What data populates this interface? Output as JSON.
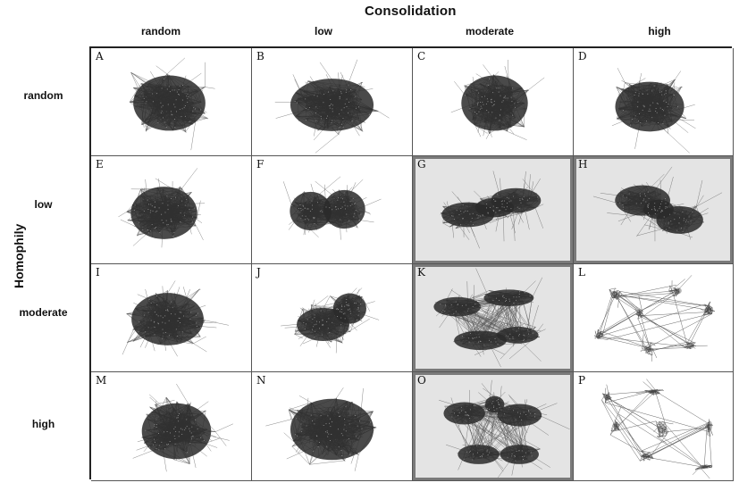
{
  "title": "Consolidation",
  "side_title": "Homophily",
  "columns": [
    "random",
    "low",
    "moderate",
    "high"
  ],
  "rows": [
    "random",
    "low",
    "moderate",
    "high"
  ],
  "panels": [
    {
      "label": "A",
      "shaded": false
    },
    {
      "label": "B",
      "shaded": false
    },
    {
      "label": "C",
      "shaded": false
    },
    {
      "label": "D",
      "shaded": false
    },
    {
      "label": "E",
      "shaded": false
    },
    {
      "label": "F",
      "shaded": false
    },
    {
      "label": "G",
      "shaded": true
    },
    {
      "label": "H",
      "shaded": true
    },
    {
      "label": "I",
      "shaded": false
    },
    {
      "label": "J",
      "shaded": false
    },
    {
      "label": "K",
      "shaded": true
    },
    {
      "label": "L",
      "shaded": false
    },
    {
      "label": "M",
      "shaded": false
    },
    {
      "label": "N",
      "shaded": false
    },
    {
      "label": "O",
      "shaded": true
    },
    {
      "label": "P",
      "shaded": false
    }
  ],
  "colors": {
    "network_dark": "#2a2a2a",
    "network_edge": "#555555",
    "shaded_panel": "#e4e4e4",
    "panel_border": "#7a7a7a"
  }
}
